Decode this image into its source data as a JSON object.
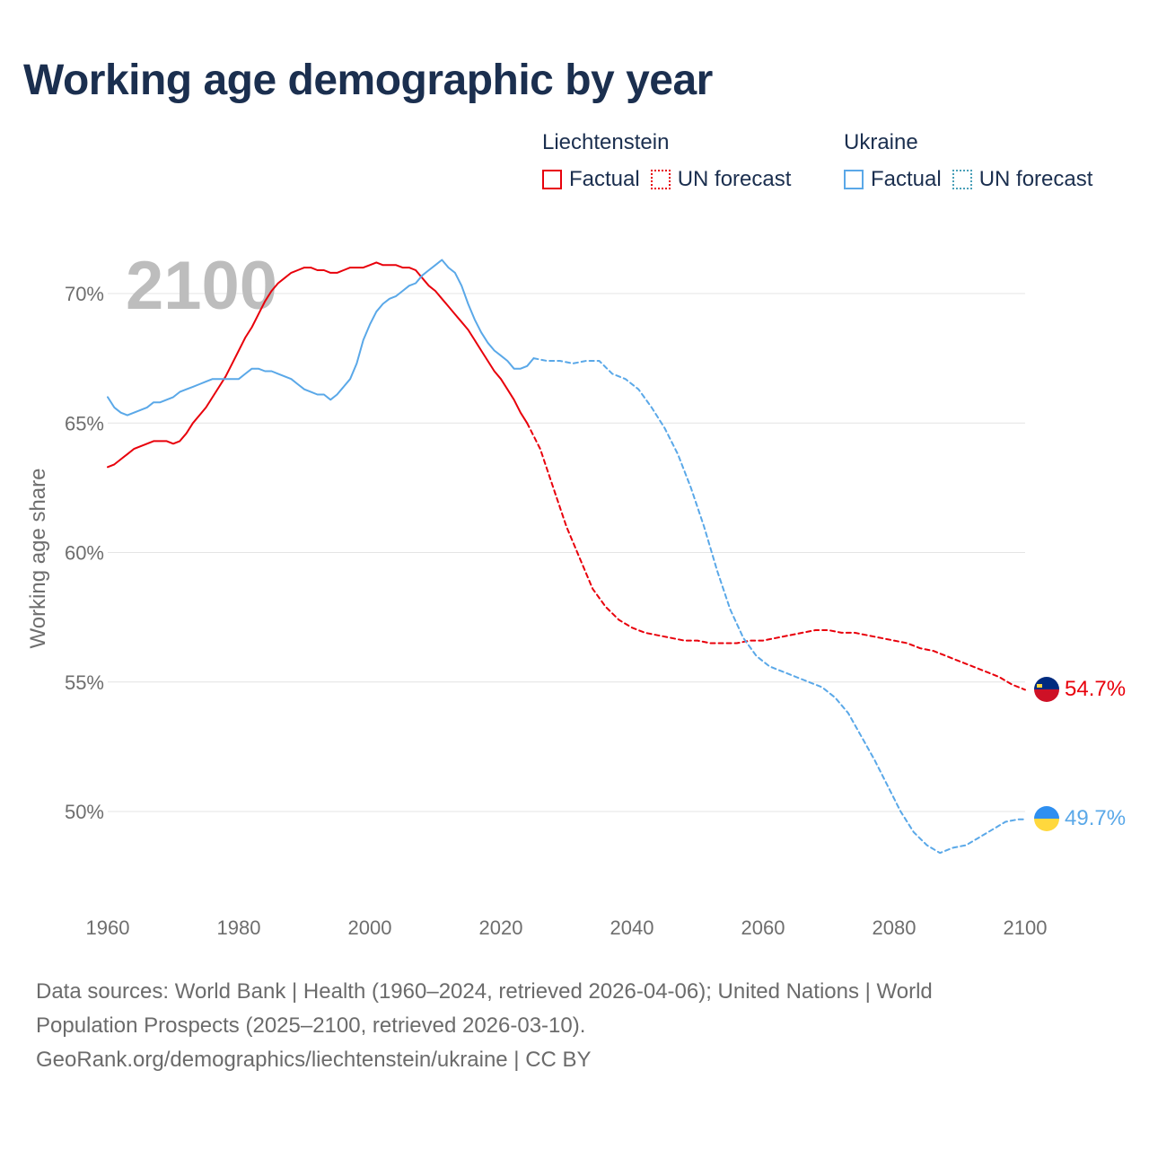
{
  "title": "Working age demographic by year",
  "legend": {
    "groups": [
      {
        "country": "Liechtenstein",
        "color": "#e8000b",
        "items": [
          {
            "label": "Factual",
            "style": "solid"
          },
          {
            "label": "UN forecast",
            "style": "dotted"
          }
        ]
      },
      {
        "country": "Ukraine",
        "color": "#5aa8e8",
        "items": [
          {
            "label": "Factual",
            "style": "solid"
          },
          {
            "label": "UN forecast",
            "style": "dotted"
          }
        ]
      }
    ]
  },
  "year_watermark": "2100",
  "end_labels": {
    "liechtenstein": "54.7%",
    "ukraine": "49.7%"
  },
  "chart_data": {
    "type": "line",
    "title": "Working age demographic by year",
    "xlabel": "",
    "ylabel": "Working age share",
    "xlim": [
      1960,
      2104
    ],
    "ylim": [
      47,
      72.5
    ],
    "x_ticks": [
      "1960",
      "1980",
      "2000",
      "2020",
      "2040",
      "2060",
      "2080",
      "2100"
    ],
    "y_ticks": [
      {
        "value": 50,
        "label": "50%"
      },
      {
        "value": 55,
        "label": "55%"
      },
      {
        "value": 60,
        "label": "60%"
      },
      {
        "value": 65,
        "label": "65%"
      },
      {
        "value": 70,
        "label": "70%"
      }
    ],
    "series": [
      {
        "name": "Liechtenstein",
        "segment": "Factual",
        "color": "#e8000b",
        "dashed": false,
        "x": [
          1960,
          1961,
          1962,
          1963,
          1964,
          1965,
          1966,
          1967,
          1968,
          1969,
          1970,
          1971,
          1972,
          1973,
          1974,
          1975,
          1976,
          1977,
          1978,
          1979,
          1980,
          1981,
          1982,
          1983,
          1984,
          1985,
          1986,
          1987,
          1988,
          1989,
          1990,
          1991,
          1992,
          1993,
          1994,
          1995,
          1996,
          1997,
          1998,
          1999,
          2000,
          2001,
          2002,
          2003,
          2004,
          2005,
          2006,
          2007,
          2008,
          2009,
          2010,
          2011,
          2012,
          2013,
          2014,
          2015,
          2016,
          2017,
          2018,
          2019,
          2020,
          2021,
          2022,
          2023,
          2024
        ],
        "y": [
          63.3,
          63.4,
          63.6,
          63.8,
          64.0,
          64.1,
          64.2,
          64.3,
          64.3,
          64.3,
          64.2,
          64.3,
          64.6,
          65.0,
          65.3,
          65.6,
          66.0,
          66.4,
          66.8,
          67.3,
          67.8,
          68.3,
          68.7,
          69.2,
          69.7,
          70.1,
          70.4,
          70.6,
          70.8,
          70.9,
          71.0,
          71.0,
          70.9,
          70.9,
          70.8,
          70.8,
          70.9,
          71.0,
          71.0,
          71.0,
          71.1,
          71.2,
          71.1,
          71.1,
          71.1,
          71.0,
          71.0,
          70.9,
          70.6,
          70.3,
          70.1,
          69.8,
          69.5,
          69.2,
          68.9,
          68.6,
          68.2,
          67.8,
          67.4,
          67.0,
          66.7,
          66.3,
          65.9,
          65.4,
          65.0
        ]
      },
      {
        "name": "Liechtenstein",
        "segment": "UN forecast",
        "color": "#e8000b",
        "dashed": true,
        "x": [
          2024,
          2026,
          2028,
          2030,
          2032,
          2034,
          2036,
          2038,
          2040,
          2042,
          2044,
          2046,
          2048,
          2050,
          2052,
          2054,
          2056,
          2058,
          2060,
          2062,
          2064,
          2066,
          2068,
          2070,
          2072,
          2074,
          2076,
          2078,
          2080,
          2082,
          2084,
          2086,
          2088,
          2090,
          2092,
          2094,
          2096,
          2098,
          2100
        ],
        "y": [
          65.0,
          64.0,
          62.5,
          61.0,
          59.8,
          58.6,
          57.9,
          57.4,
          57.1,
          56.9,
          56.8,
          56.7,
          56.6,
          56.6,
          56.5,
          56.5,
          56.5,
          56.6,
          56.6,
          56.7,
          56.8,
          56.9,
          57.0,
          57.0,
          56.9,
          56.9,
          56.8,
          56.7,
          56.6,
          56.5,
          56.3,
          56.2,
          56.0,
          55.8,
          55.6,
          55.4,
          55.2,
          54.9,
          54.7
        ]
      },
      {
        "name": "Ukraine",
        "segment": "Factual",
        "color": "#5aa8e8",
        "dashed": false,
        "x": [
          1960,
          1961,
          1962,
          1963,
          1964,
          1965,
          1966,
          1967,
          1968,
          1969,
          1970,
          1971,
          1972,
          1973,
          1974,
          1975,
          1976,
          1977,
          1978,
          1979,
          1980,
          1981,
          1982,
          1983,
          1984,
          1985,
          1986,
          1987,
          1988,
          1989,
          1990,
          1991,
          1992,
          1993,
          1994,
          1995,
          1996,
          1997,
          1998,
          1999,
          2000,
          2001,
          2002,
          2003,
          2004,
          2005,
          2006,
          2007,
          2008,
          2009,
          2010,
          2011,
          2012,
          2013,
          2014,
          2015,
          2016,
          2017,
          2018,
          2019,
          2020,
          2021,
          2022,
          2023,
          2024,
          2025
        ],
        "y": [
          66.0,
          65.6,
          65.4,
          65.3,
          65.4,
          65.5,
          65.6,
          65.8,
          65.8,
          65.9,
          66.0,
          66.2,
          66.3,
          66.4,
          66.5,
          66.6,
          66.7,
          66.7,
          66.7,
          66.7,
          66.7,
          66.9,
          67.1,
          67.1,
          67.0,
          67.0,
          66.9,
          66.8,
          66.7,
          66.5,
          66.3,
          66.2,
          66.1,
          66.1,
          65.9,
          66.1,
          66.4,
          66.7,
          67.3,
          68.2,
          68.8,
          69.3,
          69.6,
          69.8,
          69.9,
          70.1,
          70.3,
          70.4,
          70.7,
          70.9,
          71.1,
          71.3,
          71.0,
          70.8,
          70.3,
          69.6,
          69.0,
          68.5,
          68.1,
          67.8,
          67.6,
          67.4,
          67.1,
          67.1,
          67.2,
          67.5
        ]
      },
      {
        "name": "Ukraine",
        "segment": "UN forecast",
        "color": "#5aa8e8",
        "dashed": true,
        "x": [
          2025,
          2027,
          2029,
          2031,
          2033,
          2035,
          2037,
          2039,
          2041,
          2043,
          2045,
          2047,
          2049,
          2051,
          2053,
          2055,
          2057,
          2059,
          2061,
          2063,
          2065,
          2067,
          2069,
          2071,
          2073,
          2075,
          2077,
          2079,
          2081,
          2083,
          2085,
          2087,
          2089,
          2091,
          2093,
          2095,
          2097,
          2099,
          2100
        ],
        "y": [
          67.5,
          67.4,
          67.4,
          67.3,
          67.4,
          67.4,
          66.9,
          66.7,
          66.3,
          65.6,
          64.8,
          63.8,
          62.5,
          61.0,
          59.3,
          57.8,
          56.7,
          56.0,
          55.6,
          55.4,
          55.2,
          55.0,
          54.8,
          54.4,
          53.8,
          52.9,
          52.0,
          51.0,
          50.0,
          49.2,
          48.7,
          48.4,
          48.6,
          48.7,
          49.0,
          49.3,
          49.6,
          49.7,
          49.7
        ]
      }
    ]
  }
}
